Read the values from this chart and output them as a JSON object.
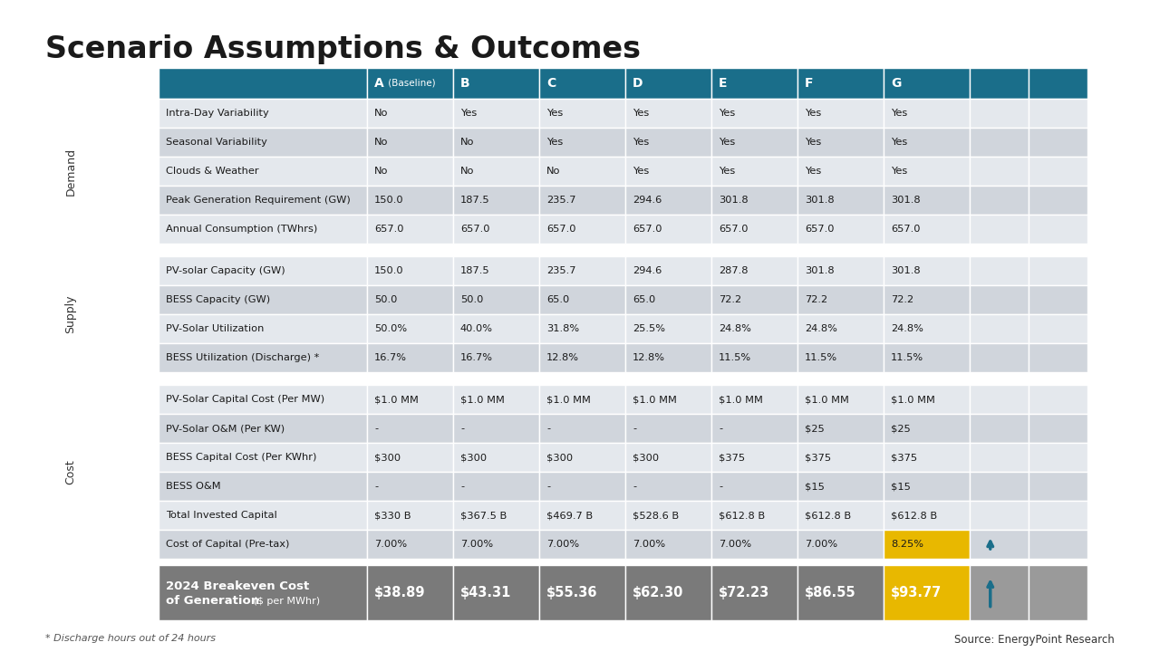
{
  "title": "Scenario Assumptions & Outcomes",
  "header_cols": [
    "A (Baseline)",
    "B",
    "C",
    "D",
    "E",
    "F",
    "G",
    "",
    ""
  ],
  "header_color": "#1a6e8a",
  "header_text_color": "#ffffff",
  "row_labels": [
    "Intra-Day Variability",
    "Seasonal Variability",
    "Clouds & Weather",
    "Peak Generation Requirement (GW)",
    "Annual Consumption (TWhrs)",
    "PV-solar Capacity (GW)",
    "BESS Capacity (GW)",
    "PV-Solar Utilization",
    "BESS Utilization (Discharge) *",
    "PV-Solar Capital Cost (Per MW)",
    "PV-Solar O&M (Per KW)",
    "BESS Capital Cost (Per KWhr)",
    "BESS O&M",
    "Total Invested Capital",
    "Cost of Capital (Pre-tax)"
  ],
  "table_data": [
    [
      "No",
      "Yes",
      "Yes",
      "Yes",
      "Yes",
      "Yes",
      "Yes",
      "",
      ""
    ],
    [
      "No",
      "No",
      "Yes",
      "Yes",
      "Yes",
      "Yes",
      "Yes",
      "",
      ""
    ],
    [
      "No",
      "No",
      "No",
      "Yes",
      "Yes",
      "Yes",
      "Yes",
      "",
      ""
    ],
    [
      "150.0",
      "187.5",
      "235.7",
      "294.6",
      "301.8",
      "301.8",
      "301.8",
      "",
      ""
    ],
    [
      "657.0",
      "657.0",
      "657.0",
      "657.0",
      "657.0",
      "657.0",
      "657.0",
      "",
      ""
    ],
    [
      "150.0",
      "187.5",
      "235.7",
      "294.6",
      "287.8",
      "301.8",
      "301.8",
      "",
      ""
    ],
    [
      "50.0",
      "50.0",
      "65.0",
      "65.0",
      "72.2",
      "72.2",
      "72.2",
      "",
      ""
    ],
    [
      "50.0%",
      "40.0%",
      "31.8%",
      "25.5%",
      "24.8%",
      "24.8%",
      "24.8%",
      "",
      ""
    ],
    [
      "16.7%",
      "16.7%",
      "12.8%",
      "12.8%",
      "11.5%",
      "11.5%",
      "11.5%",
      "",
      ""
    ],
    [
      "$1.0 MM",
      "$1.0 MM",
      "$1.0 MM",
      "$1.0 MM",
      "$1.0 MM",
      "$1.0 MM",
      "$1.0 MM",
      "",
      ""
    ],
    [
      "-",
      "-",
      "-",
      "-",
      "-",
      "$25",
      "$25",
      "",
      ""
    ],
    [
      "$300",
      "$300",
      "$300",
      "$300",
      "$375",
      "$375",
      "$375",
      "",
      ""
    ],
    [
      "-",
      "-",
      "-",
      "-",
      "-",
      "$15",
      "$15",
      "",
      ""
    ],
    [
      "$330 B",
      "$367.5 B",
      "$469.7 B",
      "$528.6 B",
      "$612.8 B",
      "$612.8 B",
      "$612.8 B",
      "",
      ""
    ],
    [
      "7.00%",
      "7.00%",
      "7.00%",
      "7.00%",
      "7.00%",
      "7.00%",
      "8.25%",
      "",
      ""
    ]
  ],
  "bottom_row_label_bold": "2024 Breakeven Cost\nof Generation",
  "bottom_row_label_normal": " ($ per MWhr)",
  "bottom_row_data": [
    "$38.89",
    "$43.31",
    "$55.36",
    "$62.30",
    "$72.23",
    "$86.55",
    "$93.77",
    "",
    ""
  ],
  "row_colors": [
    "#e4e8ed",
    "#d0d5dc"
  ],
  "g_highlight_color": "#e8b800",
  "bottom_bg": "#7a7a7a",
  "bottom_g_color": "#e8b800",
  "bottom_empty_color": "#9a9a9a",
  "footer_note": "* Discharge hours out of 24 hours",
  "footer_source": "Source: EnergyPoint Research",
  "arrow_color": "#1a6e8a"
}
